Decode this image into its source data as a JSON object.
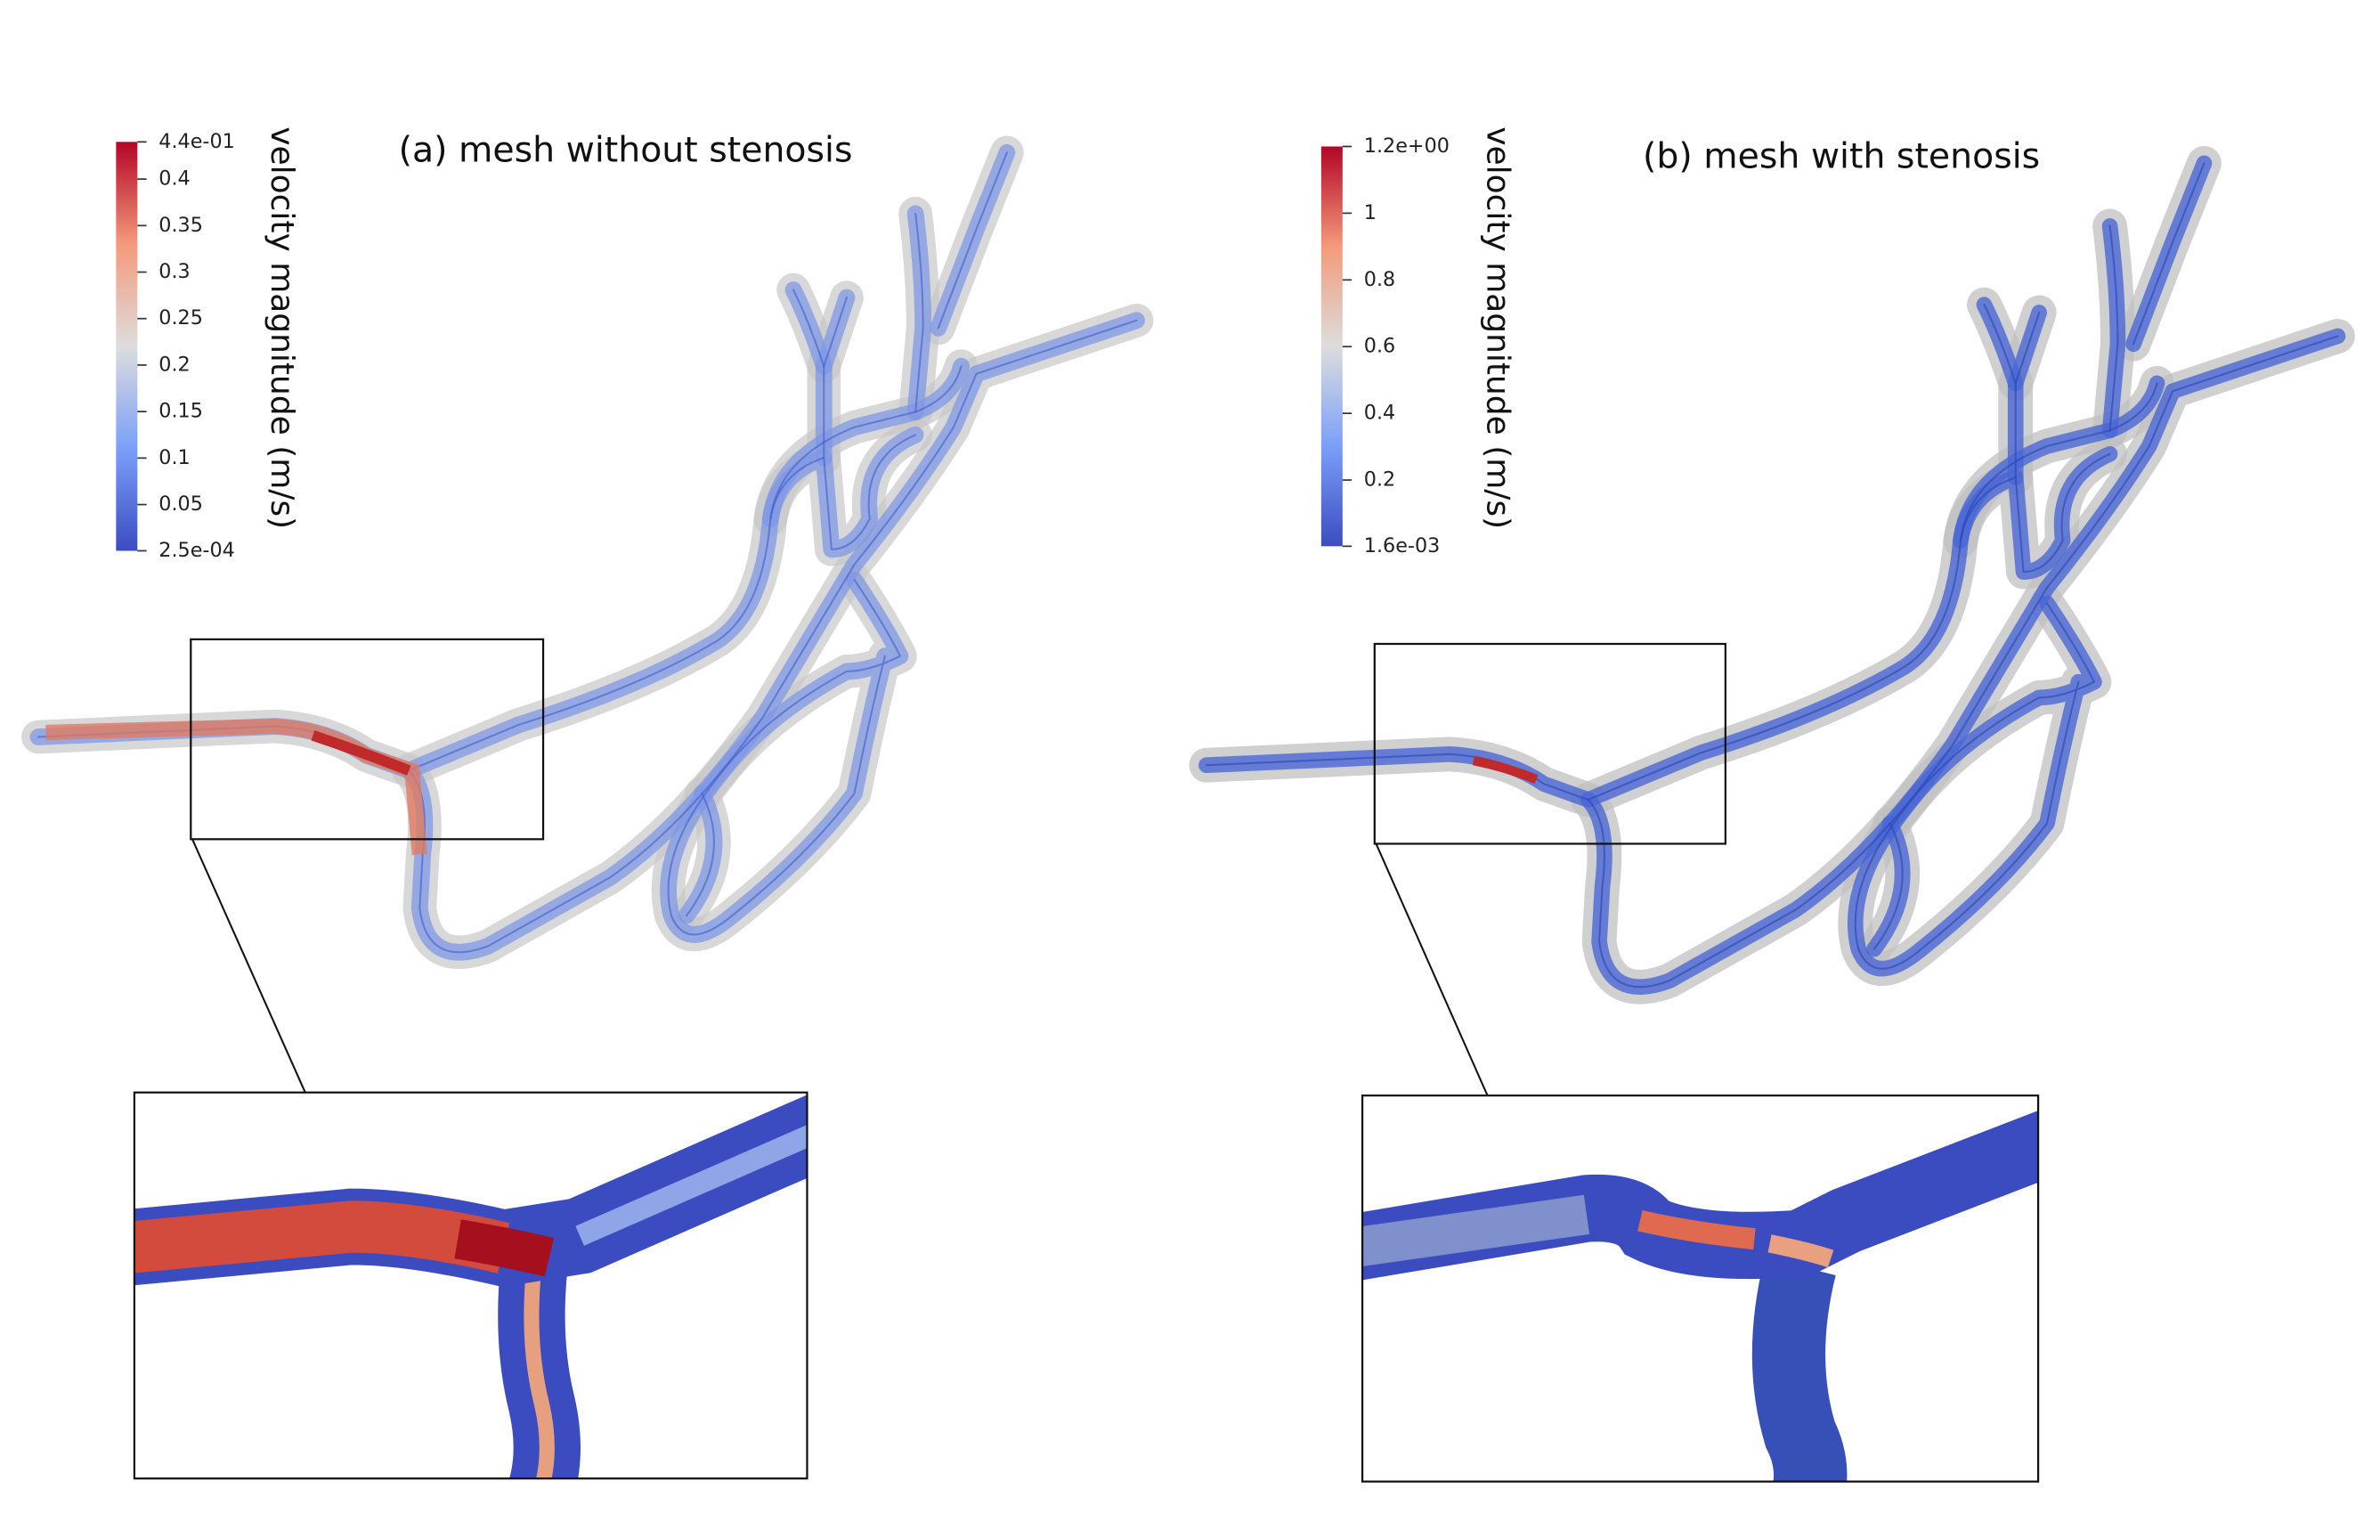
{
  "panels": [
    {
      "title": "(a) mesh without stenosis",
      "colorbar": {
        "label": "velocity magnitude (m/s)",
        "range": [
          0.00025,
          0.44
        ],
        "ticks": [
          {
            "value": 0.44,
            "label": "4.4e-01"
          },
          0.4,
          0.35,
          0.3,
          0.25,
          0.2,
          0.15,
          0.1,
          0.05,
          {
            "value": 0.00025,
            "label": "2.5e-04"
          }
        ]
      }
    },
    {
      "title": "(b) mesh with stenosis",
      "colorbar": {
        "label": "velocity magnitude (m/s)",
        "range": [
          0.0016,
          1.2
        ],
        "ticks": [
          {
            "value": 1.2,
            "label": "1.2e+00"
          },
          1,
          0.8,
          0.6,
          0.4,
          0.2,
          {
            "value": 0.0016,
            "label": "1.6e-03"
          }
        ]
      }
    }
  ]
}
